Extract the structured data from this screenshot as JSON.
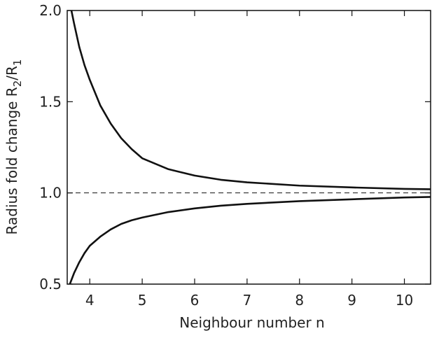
{
  "chart_data": {
    "type": "line",
    "xlabel": "Neighbour number n",
    "ylabel": [
      "Radius fold change R",
      "2",
      "/R",
      "1"
    ],
    "xlim": [
      3.57,
      10.5
    ],
    "ylim": [
      0.5,
      2.0
    ],
    "xticks": [
      4,
      5,
      6,
      7,
      8,
      9,
      10
    ],
    "yticks": [
      0.5,
      {
        "value": 1,
        "label": "1.0"
      },
      1.5,
      {
        "value": 2,
        "label": "2.0"
      }
    ],
    "reference_line": {
      "y": 1,
      "style": "dashed"
    },
    "series": [
      {
        "color": "#111111",
        "x": [
          3.65,
          3.7,
          3.8,
          3.9,
          4.0,
          4.2,
          4.4,
          4.6,
          4.8,
          5,
          5.5,
          6,
          6.5,
          7,
          8,
          9,
          10,
          10.5
        ],
        "values": [
          2.0,
          1.93,
          1.8,
          1.7,
          1.62,
          1.48,
          1.38,
          1.3,
          1.24,
          1.19,
          1.13,
          1.095,
          1.072,
          1.058,
          1.04,
          1.03,
          1.022,
          1.02
        ]
      },
      {
        "color": "#111111",
        "x": [
          3.62,
          3.7,
          3.8,
          3.9,
          4.0,
          4.2,
          4.4,
          4.6,
          4.8,
          5,
          5.5,
          6,
          6.5,
          7,
          8,
          9,
          10,
          10.5
        ],
        "values": [
          0.5,
          0.56,
          0.62,
          0.67,
          0.71,
          0.76,
          0.8,
          0.83,
          0.85,
          0.865,
          0.895,
          0.915,
          0.93,
          0.94,
          0.955,
          0.965,
          0.975,
          0.978
        ]
      }
    ]
  }
}
